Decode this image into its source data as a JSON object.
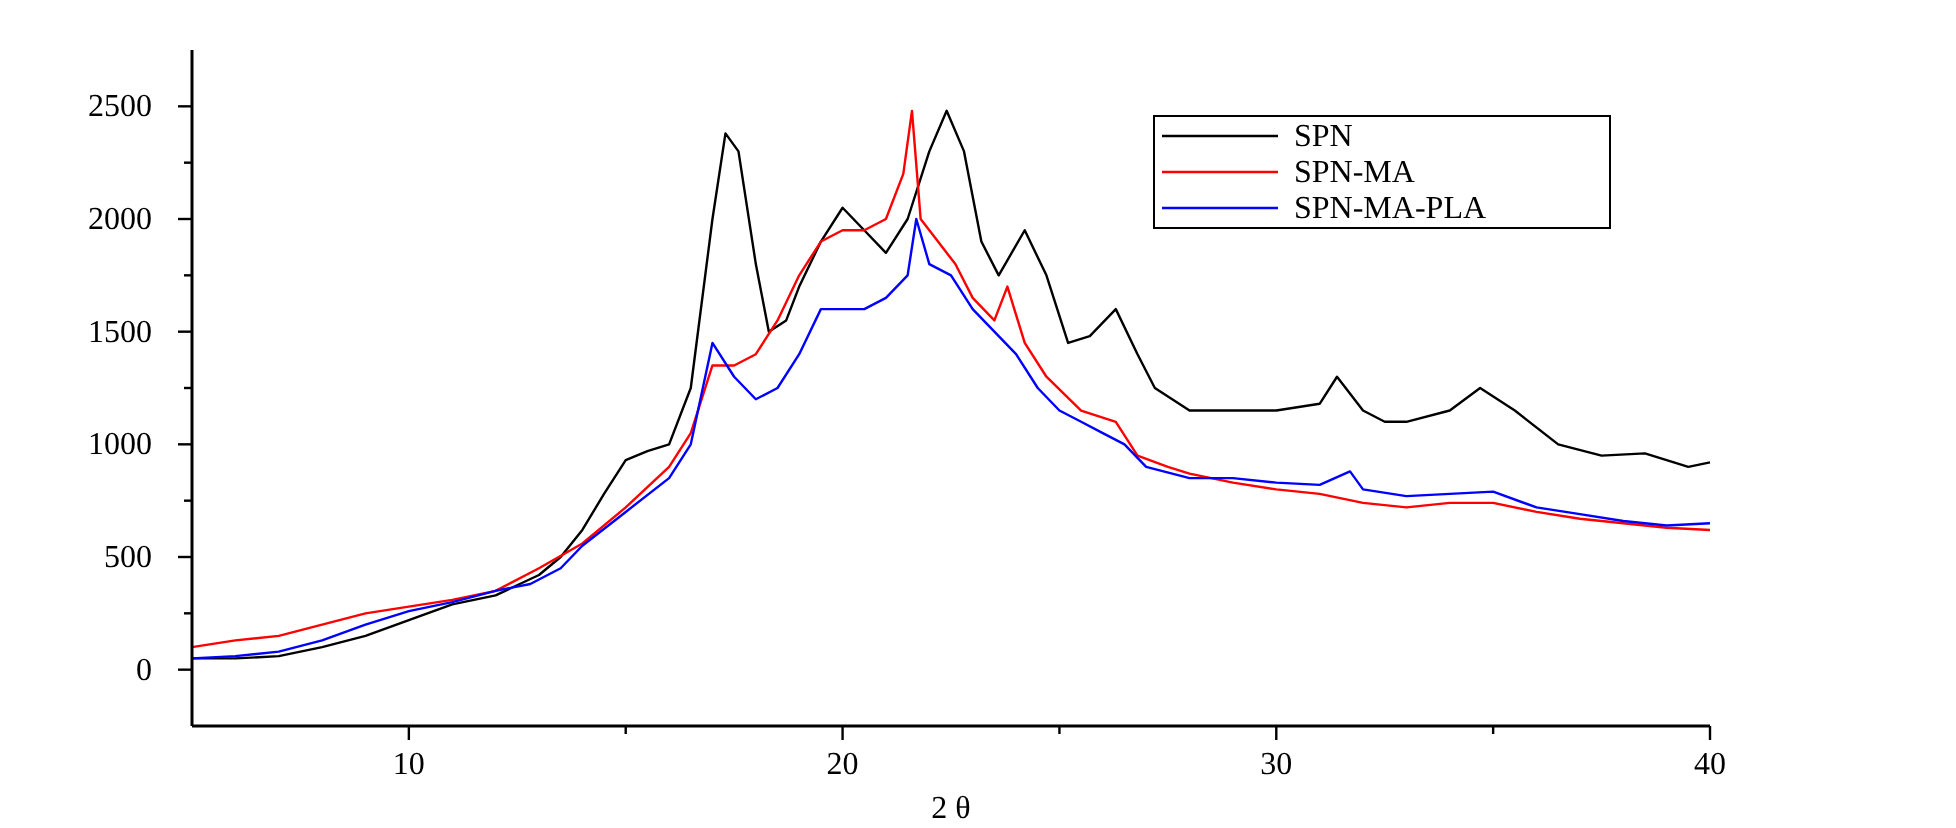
{
  "chart_data": {
    "type": "line",
    "xlabel": "2 θ",
    "xlim": [
      5,
      40
    ],
    "ylim": [
      -250,
      2750
    ],
    "xticks": [
      10,
      {
        "value": 15,
        "label": null
      },
      20,
      {
        "value": 25,
        "label": null
      },
      30,
      {
        "value": 35,
        "label": null
      },
      40
    ],
    "yticks": [
      0,
      {
        "value": 250,
        "label": null
      },
      500,
      {
        "value": 750,
        "label": null
      },
      1000,
      {
        "value": 1250,
        "label": null
      },
      1500,
      {
        "value": 1750,
        "label": null
      },
      2000,
      {
        "value": 2250,
        "label": null
      },
      2500
    ],
    "grid": false,
    "legend": "top right",
    "marker": "none",
    "line_style": "solid",
    "series": [
      {
        "name": "SPN",
        "color": "#000000",
        "x": [
          5,
          6,
          7,
          8,
          9,
          10,
          11,
          12,
          13,
          13.5,
          14,
          14.5,
          15,
          15.5,
          16,
          16.5,
          17,
          17.3,
          17.6,
          18,
          18.3,
          18.7,
          19,
          19.5,
          20,
          20.5,
          21,
          21.5,
          22,
          22.4,
          22.8,
          23.2,
          23.6,
          24.2,
          24.7,
          25.2,
          25.7,
          26.3,
          26.8,
          27.2,
          28,
          29,
          30,
          31,
          31.4,
          32,
          32.5,
          33,
          34,
          34.7,
          35.5,
          36.5,
          37.5,
          38.5,
          39.5,
          40
        ],
        "values": [
          50,
          50,
          60,
          100,
          150,
          220,
          290,
          330,
          420,
          500,
          620,
          780,
          930,
          970,
          1000,
          1250,
          2000,
          2380,
          2300,
          1800,
          1500,
          1550,
          1700,
          1900,
          2050,
          1950,
          1850,
          2000,
          2300,
          2480,
          2300,
          1900,
          1750,
          1950,
          1750,
          1450,
          1480,
          1600,
          1400,
          1250,
          1150,
          1150,
          1150,
          1180,
          1300,
          1150,
          1100,
          1100,
          1150,
          1250,
          1150,
          1000,
          950,
          960,
          900,
          920
        ]
      },
      {
        "name": "SPN-MA",
        "color": "#ff0000",
        "x": [
          5,
          6,
          7,
          8,
          9,
          10,
          11,
          12,
          13,
          14,
          15,
          16,
          16.5,
          17,
          17.5,
          18,
          18.5,
          19,
          19.5,
          20,
          20.5,
          21,
          21.4,
          21.6,
          21.8,
          22.2,
          22.6,
          23,
          23.5,
          23.8,
          24.2,
          24.7,
          25.5,
          26.3,
          26.8,
          27.5,
          28,
          29,
          30,
          31,
          32,
          33,
          34,
          35,
          36,
          37,
          38,
          39,
          40
        ],
        "values": [
          100,
          130,
          150,
          200,
          250,
          280,
          310,
          350,
          450,
          560,
          720,
          900,
          1050,
          1350,
          1350,
          1400,
          1550,
          1750,
          1900,
          1950,
          1950,
          2000,
          2200,
          2480,
          2000,
          1900,
          1800,
          1650,
          1550,
          1700,
          1450,
          1300,
          1150,
          1100,
          950,
          900,
          870,
          830,
          800,
          780,
          740,
          720,
          740,
          740,
          700,
          670,
          650,
          630,
          620
        ]
      },
      {
        "name": "SPN-MA-PLA",
        "color": "#0000ff",
        "x": [
          5,
          6,
          7,
          8,
          9,
          10,
          11,
          12,
          12.8,
          13.5,
          14,
          15,
          16,
          16.5,
          17,
          17.5,
          18,
          18.5,
          19,
          19.5,
          20,
          20.5,
          21,
          21.5,
          21.7,
          22,
          22.5,
          23,
          23.5,
          24,
          24.5,
          25,
          25.5,
          26,
          26.5,
          27,
          28,
          29,
          30,
          31,
          31.7,
          32,
          33,
          34,
          35,
          36,
          37,
          38,
          39,
          40
        ],
        "values": [
          50,
          60,
          80,
          130,
          200,
          260,
          300,
          350,
          380,
          450,
          550,
          700,
          850,
          1000,
          1450,
          1300,
          1200,
          1250,
          1400,
          1600,
          1600,
          1600,
          1650,
          1750,
          2000,
          1800,
          1750,
          1600,
          1500,
          1400,
          1250,
          1150,
          1100,
          1050,
          1000,
          900,
          850,
          850,
          830,
          820,
          880,
          800,
          770,
          780,
          790,
          720,
          690,
          660,
          640,
          650
        ]
      }
    ]
  }
}
